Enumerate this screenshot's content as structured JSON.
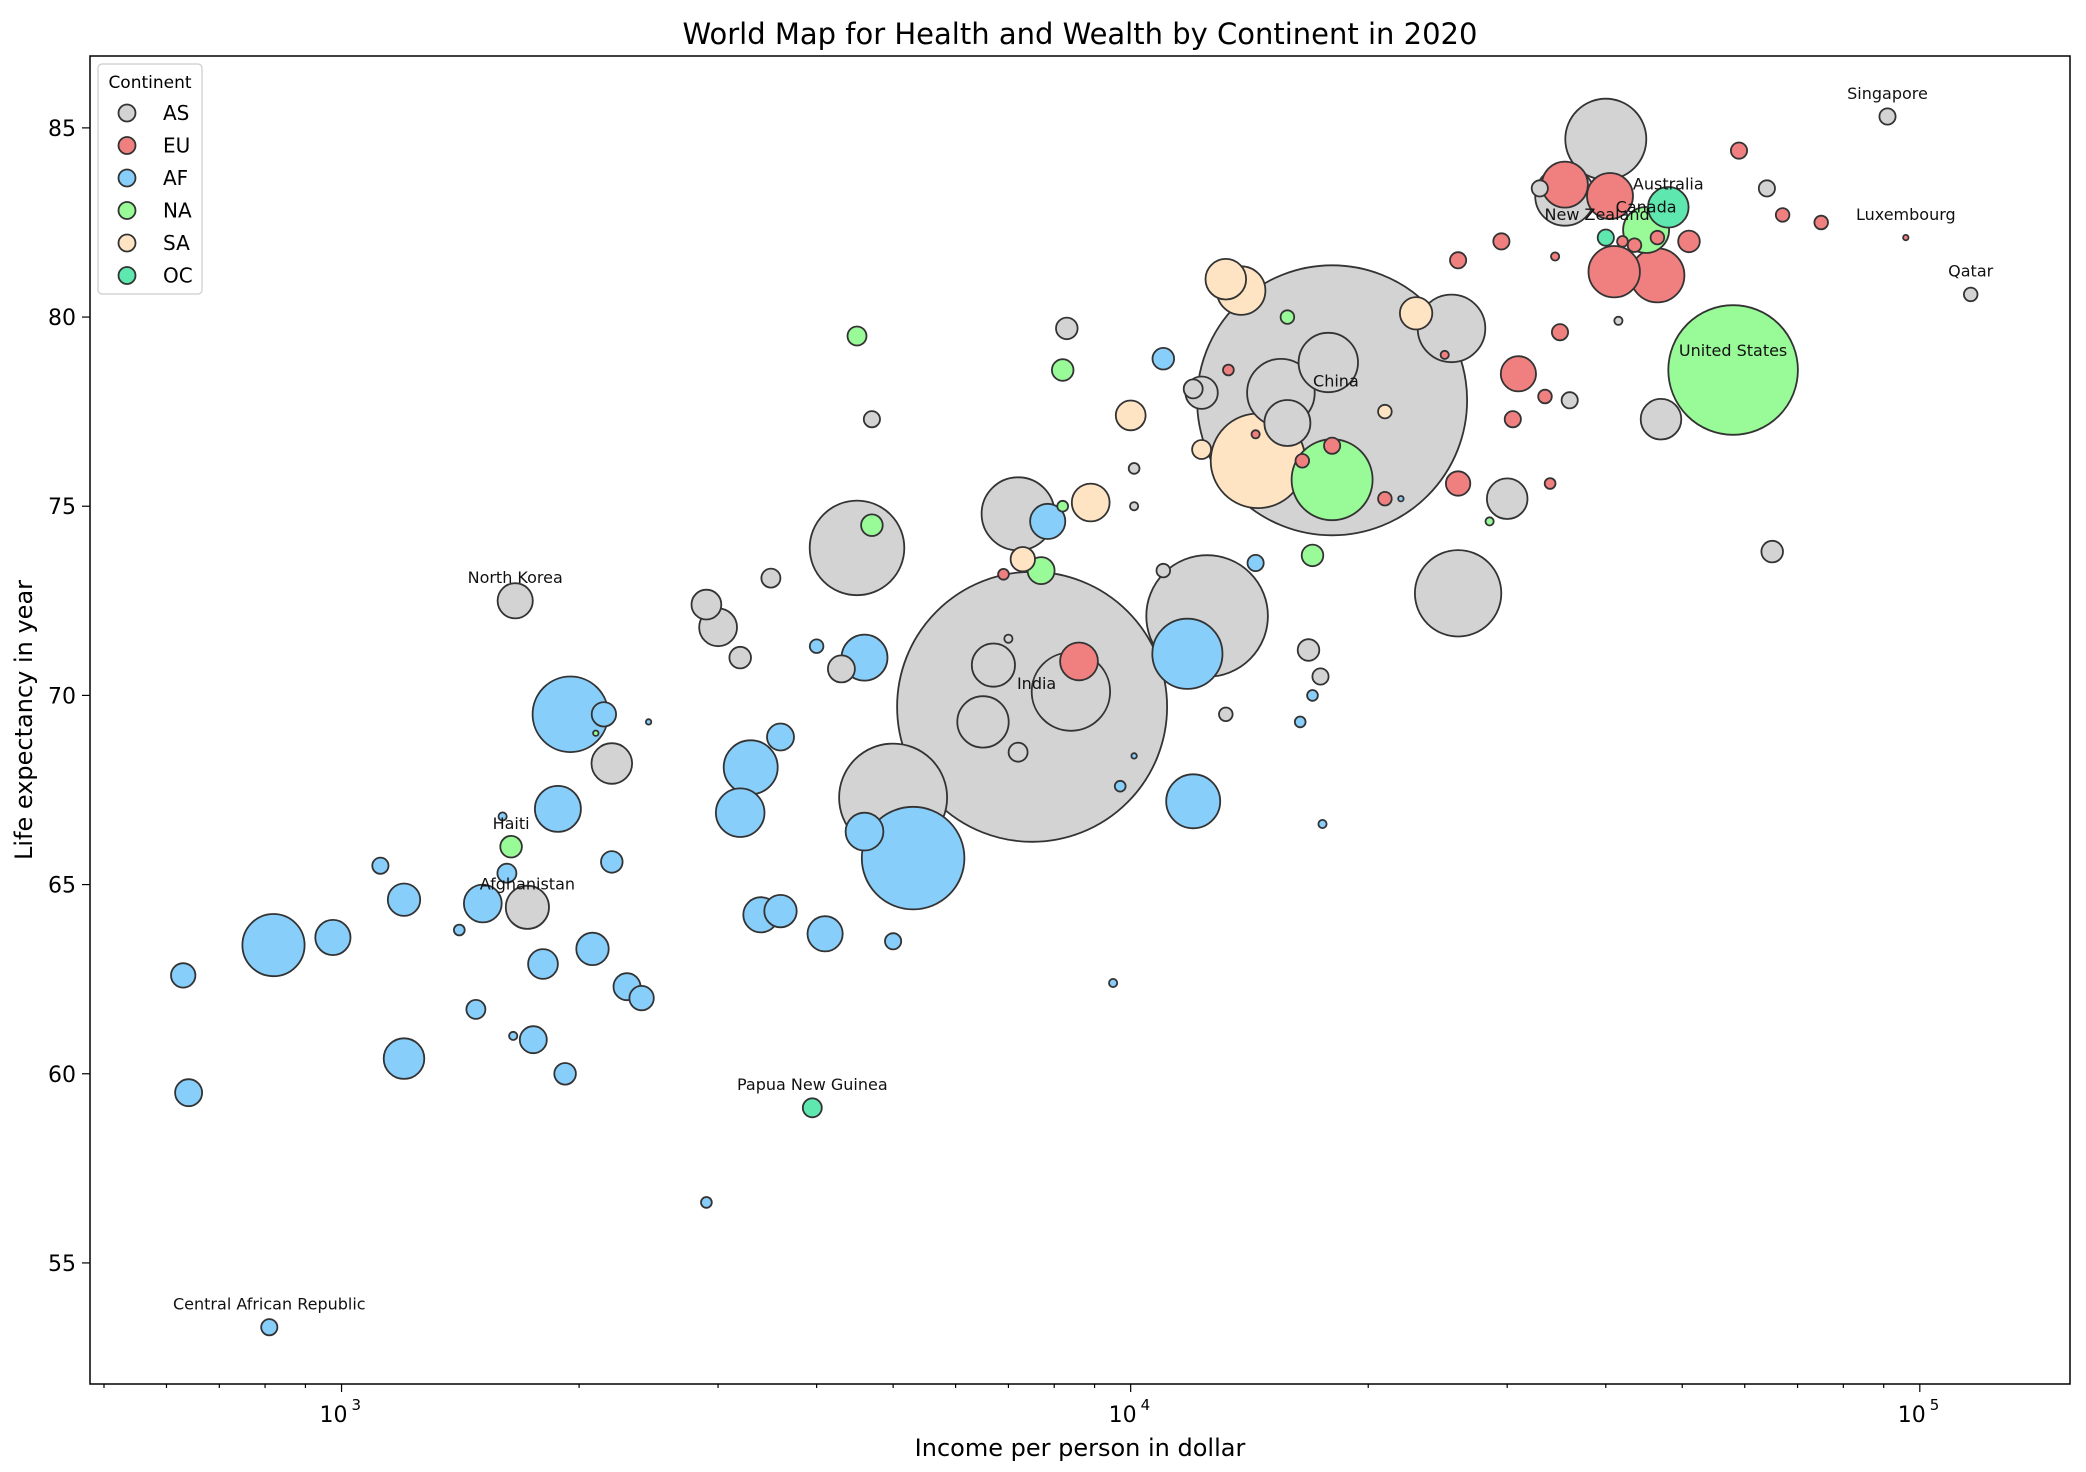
{
  "chart_data": {
    "type": "scatter",
    "title": "World Map for Health and Wealth by Continent in 2020",
    "xlabel": "Income per person in dollar",
    "ylabel": "Life expectancy in year",
    "xscale": "log",
    "xlim": [
      480,
      155000
    ],
    "ylim": [
      51.8,
      86.9
    ],
    "x_ticks": [
      {
        "value": 1000,
        "base": "10",
        "exp": "3"
      },
      {
        "value": 10000,
        "base": "10",
        "exp": "4"
      },
      {
        "value": 100000,
        "base": "10",
        "exp": "5"
      }
    ],
    "y_ticks": [
      55,
      60,
      65,
      70,
      75,
      80,
      85
    ],
    "legend": {
      "title": "Continent",
      "position": "top-left",
      "entries": [
        {
          "name": "AS",
          "color": "#d3d3d3"
        },
        {
          "name": "EU",
          "color": "#f08080"
        },
        {
          "name": "AF",
          "color": "#87cefa"
        },
        {
          "name": "NA",
          "color": "#98fb98"
        },
        {
          "name": "SA",
          "color": "#ffe4c4"
        },
        {
          "name": "OC",
          "color": "#48d1a0"
        }
      ]
    },
    "colors": {
      "AS": "#d3d3d3",
      "EU": "#f08080",
      "AF": "#87cefa",
      "NA": "#98fb98",
      "SA": "#ffe4c4",
      "OC": "#5ee8b0",
      "edge": "#333333"
    },
    "size_note": "marker area proportional to population (r values in relative units)",
    "points": [
      {
        "continent": "AS",
        "x": 7500,
        "y": 69.7,
        "r": 100,
        "label": "India"
      },
      {
        "continent": "AS",
        "x": 18000,
        "y": 77.8,
        "r": 100,
        "label": "China"
      },
      {
        "continent": "NA",
        "x": 58000,
        "y": 78.6,
        "r": 48,
        "label": "United States"
      },
      {
        "continent": "AS",
        "x": 5000,
        "y": 67.3,
        "r": 40
      },
      {
        "continent": "AS",
        "x": 12500,
        "y": 72.1,
        "r": 45
      },
      {
        "continent": "AS",
        "x": 4500,
        "y": 73.9,
        "r": 35
      },
      {
        "continent": "AS",
        "x": 26000,
        "y": 72.7,
        "r": 32
      },
      {
        "continent": "AS",
        "x": 40000,
        "y": 84.7,
        "r": 30
      },
      {
        "continent": "AS",
        "x": 8400,
        "y": 70.1,
        "r": 29
      },
      {
        "continent": "AS",
        "x": 7200,
        "y": 74.8,
        "r": 27
      },
      {
        "continent": "AS",
        "x": 25500,
        "y": 79.7,
        "r": 25
      },
      {
        "continent": "AS",
        "x": 15500,
        "y": 78.0,
        "r": 25
      },
      {
        "continent": "AS",
        "x": 17800,
        "y": 78.8,
        "r": 22
      },
      {
        "continent": "AS",
        "x": 35500,
        "y": 83.2,
        "r": 22
      },
      {
        "continent": "AS",
        "x": 6700,
        "y": 70.8,
        "r": 16
      },
      {
        "continent": "AS",
        "x": 6500,
        "y": 69.3,
        "r": 19
      },
      {
        "continent": "AS",
        "x": 15800,
        "y": 77.2,
        "r": 17
      },
      {
        "continent": "AS",
        "x": 47000,
        "y": 77.3,
        "r": 15
      },
      {
        "continent": "AS",
        "x": 30000,
        "y": 75.2,
        "r": 15
      },
      {
        "continent": "AS",
        "x": 1720,
        "y": 64.4,
        "r": 16
      },
      {
        "continent": "AS",
        "x": 2200,
        "y": 68.2,
        "r": 15
      },
      {
        "continent": "AS",
        "x": 3000,
        "y": 71.8,
        "r": 14
      },
      {
        "continent": "AS",
        "x": 1660,
        "y": 72.5,
        "r": 13,
        "label": "North Korea"
      },
      {
        "continent": "AS",
        "x": 2900,
        "y": 72.4,
        "r": 11
      },
      {
        "continent": "AS",
        "x": 12300,
        "y": 78.0,
        "r": 12
      },
      {
        "continent": "AS",
        "x": 4300,
        "y": 70.7,
        "r": 10
      },
      {
        "continent": "AS",
        "x": 8300,
        "y": 79.7,
        "r": 8
      },
      {
        "continent": "AS",
        "x": 3200,
        "y": 71.0,
        "r": 8
      },
      {
        "continent": "AS",
        "x": 16800,
        "y": 71.2,
        "r": 8
      },
      {
        "continent": "AS",
        "x": 65000,
        "y": 73.8,
        "r": 8
      },
      {
        "continent": "AS",
        "x": 3500,
        "y": 73.1,
        "r": 7
      },
      {
        "continent": "AS",
        "x": 7200,
        "y": 68.5,
        "r": 7
      },
      {
        "continent": "AS",
        "x": 12000,
        "y": 78.1,
        "r": 7
      },
      {
        "continent": "AS",
        "x": 4700,
        "y": 77.3,
        "r": 6
      },
      {
        "continent": "AS",
        "x": 36000,
        "y": 77.8,
        "r": 6
      },
      {
        "continent": "AS",
        "x": 64000,
        "y": 83.4,
        "r": 6
      },
      {
        "continent": "AS",
        "x": 91000,
        "y": 85.3,
        "r": 6,
        "label": "Singapore"
      },
      {
        "continent": "AS",
        "x": 116000,
        "y": 80.6,
        "r": 5,
        "label": "Qatar"
      },
      {
        "continent": "AS",
        "x": 17400,
        "y": 70.5,
        "r": 6
      },
      {
        "continent": "AS",
        "x": 11000,
        "y": 73.3,
        "r": 5
      },
      {
        "continent": "AS",
        "x": 13200,
        "y": 69.5,
        "r": 5
      },
      {
        "continent": "AS",
        "x": 10100,
        "y": 76.0,
        "r": 4
      },
      {
        "continent": "AS",
        "x": 33000,
        "y": 83.4,
        "r": 6
      },
      {
        "continent": "AS",
        "x": 41500,
        "y": 79.9,
        "r": 3
      },
      {
        "continent": "AS",
        "x": 7000,
        "y": 71.5,
        "r": 3
      },
      {
        "continent": "AS",
        "x": 10100,
        "y": 75.0,
        "r": 3
      },
      {
        "continent": "EU",
        "x": 35500,
        "y": 83.5,
        "r": 17
      },
      {
        "continent": "EU",
        "x": 41000,
        "y": 81.2,
        "r": 19
      },
      {
        "continent": "EU",
        "x": 46500,
        "y": 81.1,
        "r": 20
      },
      {
        "continent": "EU",
        "x": 40500,
        "y": 83.2,
        "r": 17
      },
      {
        "continent": "EU",
        "x": 8600,
        "y": 70.9,
        "r": 14
      },
      {
        "continent": "EU",
        "x": 31000,
        "y": 78.5,
        "r": 13
      },
      {
        "continent": "EU",
        "x": 26000,
        "y": 75.6,
        "r": 9
      },
      {
        "continent": "EU",
        "x": 51000,
        "y": 82.0,
        "r": 8
      },
      {
        "continent": "EU",
        "x": 59000,
        "y": 84.4,
        "r": 6
      },
      {
        "continent": "EU",
        "x": 29500,
        "y": 82.0,
        "r": 6
      },
      {
        "continent": "EU",
        "x": 26000,
        "y": 81.5,
        "r": 6
      },
      {
        "continent": "EU",
        "x": 35000,
        "y": 79.6,
        "r": 6
      },
      {
        "continent": "EU",
        "x": 30500,
        "y": 77.3,
        "r": 6
      },
      {
        "continent": "EU",
        "x": 18000,
        "y": 76.6,
        "r": 6
      },
      {
        "continent": "EU",
        "x": 16500,
        "y": 76.2,
        "r": 5
      },
      {
        "continent": "EU",
        "x": 46500,
        "y": 82.1,
        "r": 5
      },
      {
        "continent": "EU",
        "x": 67000,
        "y": 82.7,
        "r": 5
      },
      {
        "continent": "EU",
        "x": 75000,
        "y": 82.5,
        "r": 5
      },
      {
        "continent": "EU",
        "x": 33500,
        "y": 77.9,
        "r": 5
      },
      {
        "continent": "EU",
        "x": 21000,
        "y": 75.2,
        "r": 5
      },
      {
        "continent": "EU",
        "x": 43500,
        "y": 81.9,
        "r": 5
      },
      {
        "continent": "EU",
        "x": 13300,
        "y": 78.6,
        "r": 4
      },
      {
        "continent": "EU",
        "x": 34000,
        "y": 75.6,
        "r": 4
      },
      {
        "continent": "EU",
        "x": 6900,
        "y": 73.2,
        "r": 4
      },
      {
        "continent": "EU",
        "x": 96000,
        "y": 82.1,
        "r": 2,
        "label": "Luxembourg"
      },
      {
        "continent": "EU",
        "x": 42000,
        "y": 82.0,
        "r": 4
      },
      {
        "continent": "EU",
        "x": 14400,
        "y": 76.9,
        "r": 3
      },
      {
        "continent": "EU",
        "x": 34500,
        "y": 81.6,
        "r": 3
      },
      {
        "continent": "EU",
        "x": 25000,
        "y": 79.0,
        "r": 3
      },
      {
        "continent": "AF",
        "x": 5300,
        "y": 65.7,
        "r": 38
      },
      {
        "continent": "AF",
        "x": 1950,
        "y": 69.5,
        "r": 28
      },
      {
        "continent": "AF",
        "x": 820,
        "y": 63.4,
        "r": 23
      },
      {
        "continent": "AF",
        "x": 11800,
        "y": 71.1,
        "r": 26
      },
      {
        "continent": "AF",
        "x": 12000,
        "y": 67.2,
        "r": 20
      },
      {
        "continent": "AF",
        "x": 3300,
        "y": 68.1,
        "r": 20
      },
      {
        "continent": "AF",
        "x": 3200,
        "y": 66.9,
        "r": 18
      },
      {
        "continent": "AF",
        "x": 4600,
        "y": 71.0,
        "r": 17
      },
      {
        "continent": "AF",
        "x": 1880,
        "y": 67.0,
        "r": 17
      },
      {
        "continent": "AF",
        "x": 4600,
        "y": 66.4,
        "r": 14
      },
      {
        "continent": "AF",
        "x": 1200,
        "y": 60.4,
        "r": 15
      },
      {
        "continent": "AF",
        "x": 1510,
        "y": 64.5,
        "r": 14
      },
      {
        "continent": "AF",
        "x": 975,
        "y": 63.6,
        "r": 13
      },
      {
        "continent": "AF",
        "x": 4100,
        "y": 63.7,
        "r": 13
      },
      {
        "continent": "AF",
        "x": 3400,
        "y": 64.2,
        "r": 13
      },
      {
        "continent": "AF",
        "x": 3600,
        "y": 64.3,
        "r": 12
      },
      {
        "continent": "AF",
        "x": 7850,
        "y": 74.6,
        "r": 13
      },
      {
        "continent": "AF",
        "x": 2080,
        "y": 63.3,
        "r": 12
      },
      {
        "continent": "AF",
        "x": 1200,
        "y": 64.6,
        "r": 12
      },
      {
        "continent": "AF",
        "x": 1800,
        "y": 62.9,
        "r": 11
      },
      {
        "continent": "AF",
        "x": 640,
        "y": 59.5,
        "r": 10
      },
      {
        "continent": "AF",
        "x": 2300,
        "y": 62.3,
        "r": 10
      },
      {
        "continent": "AF",
        "x": 2400,
        "y": 62.0,
        "r": 9
      },
      {
        "continent": "AF",
        "x": 1750,
        "y": 60.9,
        "r": 10
      },
      {
        "continent": "AF",
        "x": 3600,
        "y": 68.9,
        "r": 10
      },
      {
        "continent": "AF",
        "x": 2150,
        "y": 69.5,
        "r": 9
      },
      {
        "continent": "AF",
        "x": 630,
        "y": 62.6,
        "r": 9
      },
      {
        "continent": "AF",
        "x": 1920,
        "y": 60.0,
        "r": 8
      },
      {
        "continent": "AF",
        "x": 2200,
        "y": 65.6,
        "r": 8
      },
      {
        "continent": "AF",
        "x": 11000,
        "y": 78.9,
        "r": 8
      },
      {
        "continent": "AF",
        "x": 1480,
        "y": 61.7,
        "r": 7
      },
      {
        "continent": "AF",
        "x": 1620,
        "y": 65.3,
        "r": 7
      },
      {
        "continent": "AF",
        "x": 1120,
        "y": 65.5,
        "r": 6
      },
      {
        "continent": "AF",
        "x": 14400,
        "y": 73.5,
        "r": 6
      },
      {
        "continent": "AF",
        "x": 5000,
        "y": 63.5,
        "r": 6
      },
      {
        "continent": "AF",
        "x": 4000,
        "y": 71.3,
        "r": 5
      },
      {
        "continent": "AF",
        "x": 810,
        "y": 53.3,
        "r": 6,
        "label": "Central African Republic"
      },
      {
        "continent": "AF",
        "x": 1410,
        "y": 63.8,
        "r": 4
      },
      {
        "continent": "AF",
        "x": 16400,
        "y": 69.3,
        "r": 4
      },
      {
        "continent": "AF",
        "x": 17000,
        "y": 70.0,
        "r": 4
      },
      {
        "continent": "AF",
        "x": 9700,
        "y": 67.6,
        "r": 4
      },
      {
        "continent": "AF",
        "x": 2900,
        "y": 56.6,
        "r": 4
      },
      {
        "continent": "AF",
        "x": 1600,
        "y": 66.8,
        "r": 3
      },
      {
        "continent": "AF",
        "x": 1650,
        "y": 61.0,
        "r": 3
      },
      {
        "continent": "AF",
        "x": 17500,
        "y": 66.6,
        "r": 3
      },
      {
        "continent": "AF",
        "x": 9500,
        "y": 62.4,
        "r": 3
      },
      {
        "continent": "AF",
        "x": 10100,
        "y": 68.4,
        "r": 2
      },
      {
        "continent": "AF",
        "x": 2450,
        "y": 69.3,
        "r": 2
      },
      {
        "continent": "AF",
        "x": 22000,
        "y": 75.2,
        "r": 2
      },
      {
        "continent": "NA",
        "x": 18000,
        "y": 75.7,
        "r": 30
      },
      {
        "continent": "NA",
        "x": 45000,
        "y": 82.3,
        "r": 17
      },
      {
        "continent": "NA",
        "x": 7700,
        "y": 73.3,
        "r": 10
      },
      {
        "continent": "NA",
        "x": 17000,
        "y": 73.7,
        "r": 8
      },
      {
        "continent": "NA",
        "x": 8200,
        "y": 78.6,
        "r": 8
      },
      {
        "continent": "NA",
        "x": 4700,
        "y": 74.5,
        "r": 8
      },
      {
        "continent": "NA",
        "x": 4500,
        "y": 79.5,
        "r": 7
      },
      {
        "continent": "NA",
        "x": 1640,
        "y": 66.0,
        "r": 8,
        "label": "Haiti"
      },
      {
        "continent": "NA",
        "x": 15800,
        "y": 80.0,
        "r": 5
      },
      {
        "continent": "NA",
        "x": 8200,
        "y": 75.0,
        "r": 4
      },
      {
        "continent": "NA",
        "x": 28500,
        "y": 74.6,
        "r": 3
      },
      {
        "continent": "NA",
        "x": 2100,
        "y": 69.0,
        "r": 2
      },
      {
        "continent": "SA",
        "x": 14500,
        "y": 76.2,
        "r": 35
      },
      {
        "continent": "SA",
        "x": 13800,
        "y": 80.7,
        "r": 18
      },
      {
        "continent": "SA",
        "x": 13200,
        "y": 81.0,
        "r": 15
      },
      {
        "continent": "SA",
        "x": 8900,
        "y": 75.1,
        "r": 14
      },
      {
        "continent": "SA",
        "x": 23000,
        "y": 80.1,
        "r": 12
      },
      {
        "continent": "SA",
        "x": 10000,
        "y": 77.4,
        "r": 11
      },
      {
        "continent": "SA",
        "x": 7300,
        "y": 73.6,
        "r": 9
      },
      {
        "continent": "SA",
        "x": 12300,
        "y": 76.5,
        "r": 7
      },
      {
        "continent": "SA",
        "x": 21000,
        "y": 77.5,
        "r": 5
      },
      {
        "continent": "OC",
        "x": 48000,
        "y": 82.9,
        "r": 15,
        "label": "Australia"
      },
      {
        "continent": "OC",
        "x": 40000,
        "y": 82.1,
        "r": 6,
        "label": "New Zealand"
      },
      {
        "continent": "OC",
        "x": 3950,
        "y": 59.1,
        "r": 7,
        "label": "Papua New Guinea"
      }
    ],
    "labels": [
      {
        "text": "India",
        "x": 7600,
        "y": 70.3
      },
      {
        "text": "China",
        "x": 18200,
        "y": 78.3
      },
      {
        "text": "United States",
        "x": 58000,
        "y": 79.1
      },
      {
        "text": "Singapore",
        "x": 91000,
        "y": 85.9
      },
      {
        "text": "Qatar",
        "x": 116000,
        "y": 81.2
      },
      {
        "text": "Luxembourg",
        "x": 96000,
        "y": 82.7
      },
      {
        "text": "Australia",
        "x": 48000,
        "y": 83.5
      },
      {
        "text": "Canada",
        "x": 45000,
        "y": 82.9
      },
      {
        "text": "New Zealand",
        "x": 39000,
        "y": 82.7
      },
      {
        "text": "North Korea",
        "x": 1660,
        "y": 73.1
      },
      {
        "text": "Haiti",
        "x": 1640,
        "y": 66.6
      },
      {
        "text": "Afghanistan",
        "x": 1720,
        "y": 65.0
      },
      {
        "text": "Papua New Guinea",
        "x": 3950,
        "y": 59.7
      },
      {
        "text": "Central African Republic",
        "x": 810,
        "y": 53.9
      }
    ]
  }
}
